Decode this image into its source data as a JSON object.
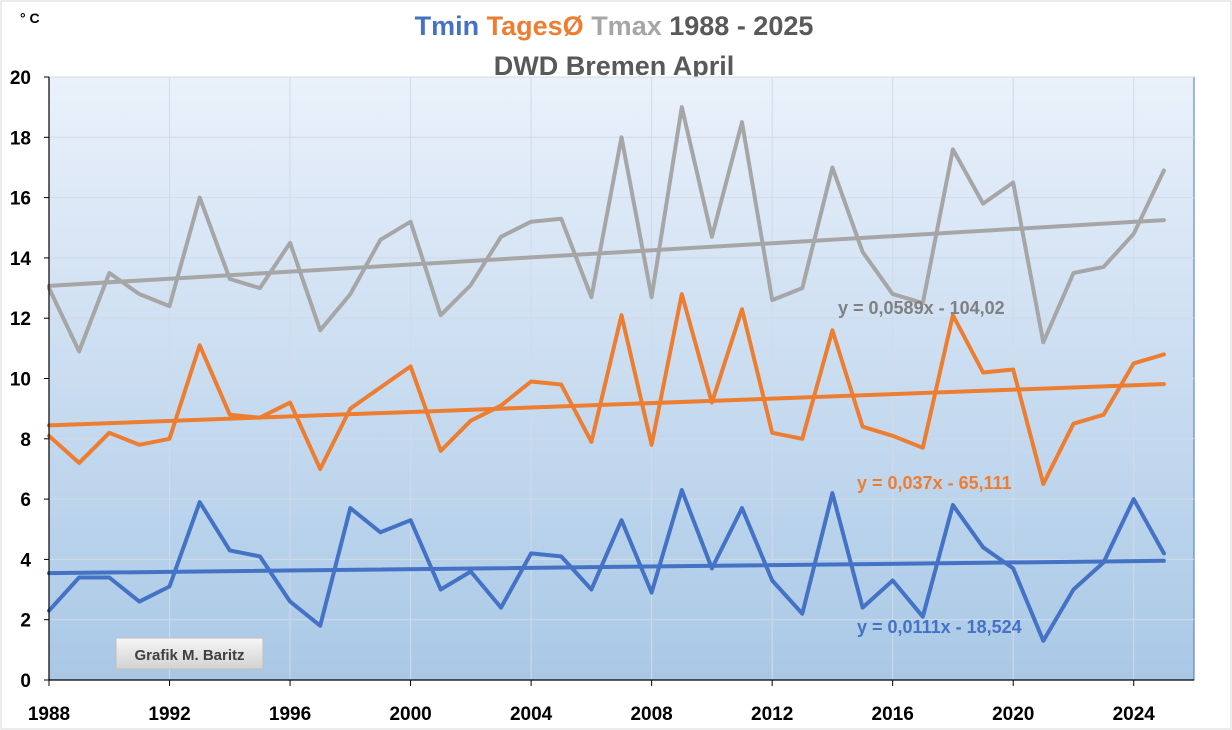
{
  "chart_data": {
    "type": "line",
    "title_parts": [
      {
        "text": "Tmin",
        "color": "#4472c4"
      },
      {
        "text": "TagesØ",
        "color": "#ed7d31"
      },
      {
        "text": "Tmax",
        "color": "#a6a6a6"
      },
      {
        "text": "1988 - 2025",
        "color": "#595959"
      }
    ],
    "subtitle": "DWD Bremen April",
    "ylabel": "° C",
    "xlim": [
      1988,
      2026
    ],
    "ylim": [
      0,
      20
    ],
    "x_ticks": [
      1988,
      1992,
      1996,
      2000,
      2004,
      2008,
      2012,
      2016,
      2020,
      2024
    ],
    "y_ticks": [
      0,
      2,
      4,
      6,
      8,
      10,
      12,
      14,
      16,
      18,
      20
    ],
    "grid": true,
    "x": [
      1988,
      1989,
      1990,
      1991,
      1992,
      1993,
      1994,
      1995,
      1996,
      1997,
      1998,
      1999,
      2000,
      2001,
      2002,
      2003,
      2004,
      2005,
      2006,
      2007,
      2008,
      2009,
      2010,
      2011,
      2012,
      2013,
      2014,
      2015,
      2016,
      2017,
      2018,
      2019,
      2020,
      2021,
      2022,
      2023,
      2024,
      2025
    ],
    "series": [
      {
        "name": "Tmax",
        "color": "#a6a6a6",
        "values": [
          13.0,
          10.9,
          13.5,
          12.8,
          12.4,
          16.0,
          13.3,
          13.0,
          14.5,
          11.6,
          12.8,
          14.6,
          15.2,
          12.1,
          13.1,
          14.7,
          15.2,
          15.3,
          12.7,
          18.0,
          12.7,
          19.0,
          14.7,
          18.5,
          12.6,
          13.0,
          17.0,
          14.2,
          12.8,
          12.5,
          17.6,
          15.8,
          16.5,
          11.2,
          13.5,
          13.7,
          14.8,
          16.9
        ],
        "trend": {
          "slope": 0.0589,
          "intercept": -104.02,
          "label": "y = 0,0589x - 104,02"
        }
      },
      {
        "name": "TagesØ",
        "color": "#ed7d31",
        "values": [
          8.1,
          7.2,
          8.2,
          7.8,
          8.0,
          11.1,
          8.8,
          8.7,
          9.2,
          7.0,
          9.0,
          9.7,
          10.4,
          7.6,
          8.6,
          9.1,
          9.9,
          9.8,
          7.9,
          12.1,
          7.8,
          12.8,
          9.2,
          12.3,
          8.2,
          8.0,
          11.6,
          8.4,
          8.1,
          7.7,
          12.1,
          10.2,
          10.3,
          6.5,
          8.5,
          8.8,
          10.5,
          10.8
        ],
        "trend": {
          "slope": 0.037,
          "intercept": -65.111,
          "label": "y = 0,037x - 65,111"
        }
      },
      {
        "name": "Tmin",
        "color": "#4472c4",
        "values": [
          2.3,
          3.4,
          3.4,
          2.6,
          3.1,
          5.9,
          4.3,
          4.1,
          2.6,
          1.8,
          5.7,
          4.9,
          5.3,
          3.0,
          3.6,
          2.4,
          4.2,
          4.1,
          3.0,
          5.3,
          2.9,
          6.3,
          3.7,
          5.7,
          3.3,
          2.2,
          6.2,
          2.4,
          3.3,
          2.1,
          5.8,
          4.4,
          3.7,
          1.3,
          3.0,
          3.9,
          6.0,
          4.2
        ],
        "trend": {
          "slope": 0.0111,
          "intercept": -18.524,
          "label": "y = 0,0111x - 18,524"
        }
      }
    ],
    "annotation": "Grafik M. Baritz"
  }
}
